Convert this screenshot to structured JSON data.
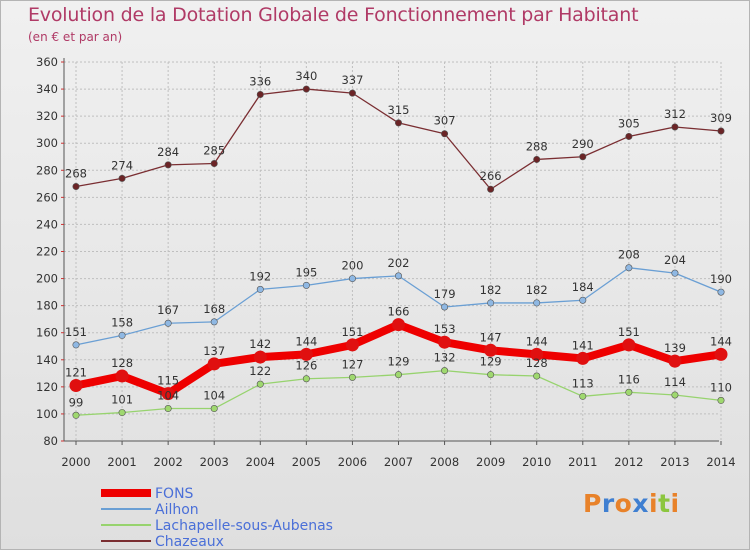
{
  "title": "Evolution de la Dotation Globale de Fonctionnement par Habitant",
  "subtitle": "(en € et par an)",
  "logo_text": "Proxiti",
  "colors": {
    "title": "#b03a66",
    "axis": "#555555",
    "grid": "#bfbfbf",
    "legend_text": "#4a6fd8",
    "logo": [
      "#e8822a",
      "#3f7fd1",
      "#e8822a",
      "#3f7fd1",
      "#e8822a",
      "#8cc63f",
      "#e8822a"
    ]
  },
  "chart_data": {
    "type": "line",
    "title": "Evolution de la Dotation Globale de Fonctionnement par Habitant",
    "subtitle": "(en € et par an)",
    "xlabel": "",
    "ylabel": "",
    "ylim": [
      80,
      360
    ],
    "ytick_step": 20,
    "grid": true,
    "legend_position": "bottom-left",
    "categories": [
      "2000",
      "2001",
      "2002",
      "2003",
      "2004",
      "2005",
      "2006",
      "2007",
      "2008",
      "2009",
      "2010",
      "2011",
      "2012",
      "2013",
      "2014"
    ],
    "series": [
      {
        "name": "FONS",
        "color": "#ee0000",
        "marker": "#e01010",
        "emphasis": true,
        "values": [
          121,
          128,
          115,
          137,
          142,
          144,
          151,
          166,
          153,
          147,
          144,
          141,
          151,
          139,
          144
        ]
      },
      {
        "name": "Ailhon",
        "color": "#6a9fd4",
        "marker": "#8fb8e3",
        "values": [
          151,
          158,
          167,
          168,
          192,
          195,
          200,
          202,
          179,
          182,
          182,
          184,
          208,
          204,
          190
        ]
      },
      {
        "name": "Lachapelle-sous-Aubenas",
        "color": "#97d36e",
        "marker": "#9fd86f",
        "values": [
          99,
          101,
          104,
          104,
          122,
          126,
          127,
          129,
          132,
          129,
          128,
          113,
          116,
          114,
          110
        ]
      },
      {
        "name": "Chazeaux",
        "color": "#7a2e32",
        "marker": "#6b2426",
        "values": [
          268,
          274,
          284,
          285,
          336,
          340,
          337,
          315,
          307,
          266,
          288,
          290,
          305,
          312,
          309
        ]
      }
    ]
  }
}
